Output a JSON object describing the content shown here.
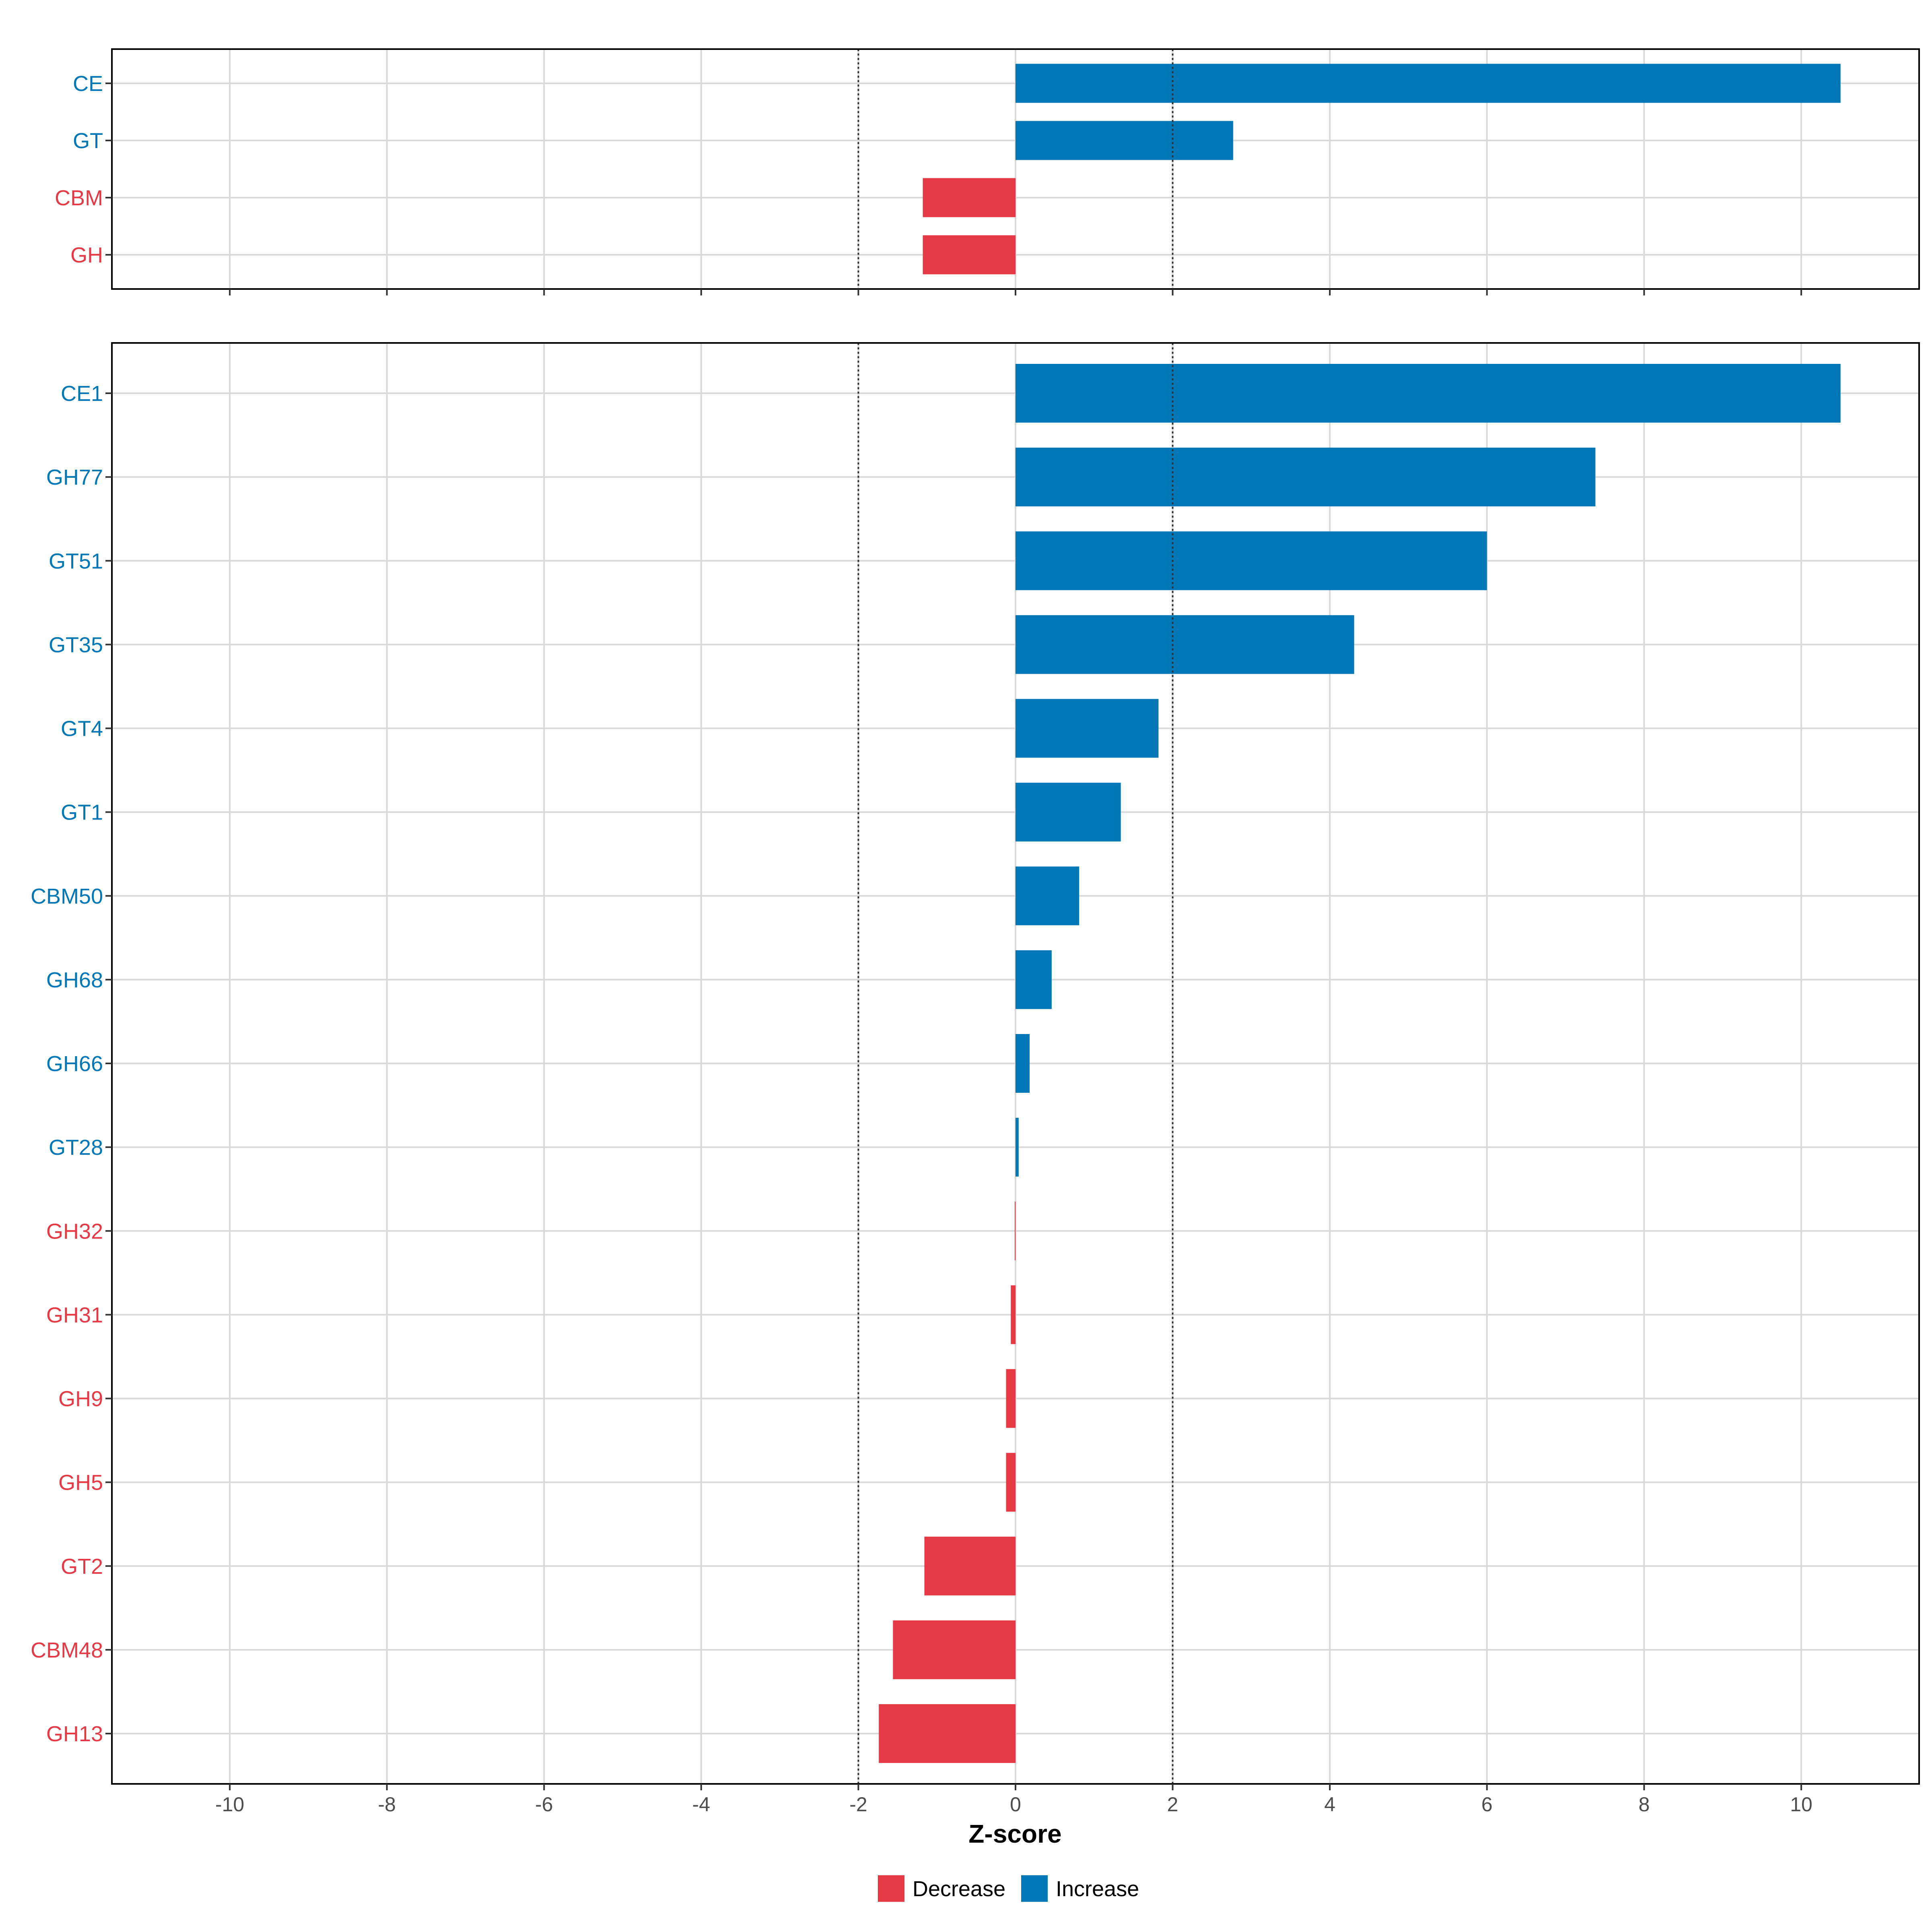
{
  "chart_data": [
    {
      "type": "bar",
      "orientation": "horizontal",
      "panel": "top",
      "categories": [
        "CE",
        "GT",
        "CBM",
        "GH"
      ],
      "values": [
        10.5,
        2.77,
        -1.18,
        -1.18
      ],
      "xlim": [
        -11.5,
        11.5
      ],
      "xticks": [
        -10,
        -8,
        -6,
        -4,
        -2,
        0,
        2,
        4,
        6,
        8,
        10
      ],
      "reference_lines": [
        -2,
        2
      ],
      "grid": true
    },
    {
      "type": "bar",
      "orientation": "horizontal",
      "panel": "bottom",
      "categories": [
        "CE1",
        "GH77",
        "GT51",
        "GT35",
        "GT4",
        "GT1",
        "CBM50",
        "GH68",
        "GH66",
        "GT28",
        "GH32",
        "GH31",
        "GH9",
        "GH5",
        "GT2",
        "CBM48",
        "GH13"
      ],
      "values": [
        10.5,
        7.38,
        6.0,
        4.31,
        1.82,
        1.34,
        0.81,
        0.46,
        0.18,
        0.04,
        -0.01,
        -0.06,
        -0.12,
        -0.12,
        -1.16,
        -1.56,
        -1.74
      ],
      "xlim": [
        -11.5,
        11.5
      ],
      "xticks": [
        -10,
        -8,
        -6,
        -4,
        -2,
        0,
        2,
        4,
        6,
        8,
        10
      ],
      "tick_labels": [
        "-10",
        "-8",
        "-6",
        "-4",
        "-2",
        "0",
        "2",
        "4",
        "6",
        "8",
        "10"
      ],
      "reference_lines": [
        -2,
        2
      ],
      "xlabel": "Z-score",
      "grid": true
    }
  ],
  "legend": {
    "position": "bottom",
    "items": [
      {
        "label": "Decrease",
        "color": "#E63946"
      },
      {
        "label": "Increase",
        "color": "#0077B6"
      }
    ]
  },
  "colors": {
    "increase": "#0077B6",
    "decrease": "#E63946",
    "grid": "#d9d9d9",
    "frame": "#000000"
  }
}
